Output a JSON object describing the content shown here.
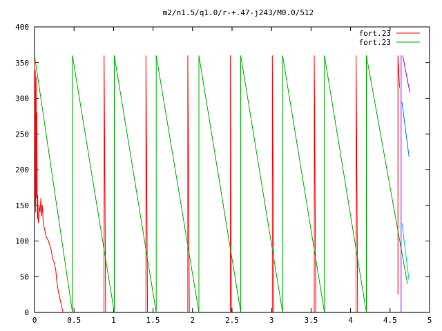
{
  "chart_data": {
    "type": "line",
    "title": "m2/n1.5/q1.0/r-+.47-j243/M0.0/512",
    "xlabel": "",
    "ylabel": "",
    "xlim": [
      0,
      5
    ],
    "ylim": [
      0,
      400
    ],
    "x_ticks": [
      0,
      0.5,
      1,
      1.5,
      2,
      2.5,
      3,
      3.5,
      4,
      4.5,
      5
    ],
    "x_tick_labels": [
      "0",
      "0.5",
      "1",
      "1.5",
      "2",
      "2.5",
      "3",
      "3.5",
      "4",
      "4.5",
      "5"
    ],
    "y_ticks": [
      0,
      50,
      100,
      150,
      200,
      250,
      300,
      350,
      400
    ],
    "y_tick_labels": [
      "0",
      "50",
      "100",
      "150",
      "200",
      "250",
      "300",
      "350",
      "400"
    ],
    "grid": false,
    "legend_position": "top-right",
    "series": [
      {
        "name": "fort.23",
        "color": "#ff0000",
        "x": [
          0.0,
          0.005,
          0.01,
          0.015,
          0.02,
          0.025,
          0.03,
          0.035,
          0.04,
          0.045,
          0.05,
          0.06,
          0.07,
          0.08,
          0.09,
          0.1,
          0.11,
          0.12,
          0.13,
          0.14,
          0.15,
          0.17,
          0.19,
          0.21,
          0.23,
          0.25,
          0.27,
          0.28,
          0.29,
          0.3,
          0.36,
          0.36,
          0.88,
          0.88,
          0.9,
          0.9,
          1.41,
          1.41,
          1.43,
          1.43,
          1.94,
          1.94,
          1.96,
          1.96,
          2.48,
          2.48,
          2.49,
          2.49,
          3.01,
          3.01,
          3.03,
          3.03,
          3.54,
          3.54,
          3.56,
          3.56,
          4.07,
          4.07,
          4.09,
          4.09,
          4.6,
          4.6,
          4.62,
          4.62,
          4.65
        ],
        "y": [
          355,
          150,
          340,
          140,
          330,
          160,
          280,
          130,
          165,
          135,
          125,
          150,
          140,
          160,
          135,
          150,
          125,
          120,
          115,
          110,
          105,
          102,
          95,
          88,
          75,
          70,
          58,
          45,
          38,
          30,
          0,
          null,
          0,
          360,
          0,
          null,
          0,
          360,
          0,
          null,
          0,
          360,
          0,
          null,
          0,
          360,
          0,
          null,
          0,
          360,
          0,
          null,
          0,
          360,
          0,
          null,
          0,
          360,
          0,
          null,
          25,
          360,
          315,
          null,
          null
        ]
      },
      {
        "name": "fort.23",
        "color": "#00b000",
        "x": [
          0.0,
          0.48,
          0.48,
          1.01,
          1.01,
          1.54,
          1.54,
          2.08,
          2.08,
          2.61,
          2.61,
          3.14,
          3.14,
          3.67,
          3.67,
          4.2,
          4.2,
          4.72
        ],
        "y": [
          360,
          0,
          360,
          0,
          360,
          0,
          360,
          0,
          360,
          0,
          360,
          0,
          360,
          0,
          360,
          0,
          360,
          40
        ]
      }
    ],
    "extra_segments": [
      {
        "color": "#a000ff",
        "x": [
          4.66,
          4.75
        ],
        "y": [
          360,
          308
        ]
      },
      {
        "color": "#a000ff",
        "x": [
          4.64,
          4.64
        ],
        "y": [
          0,
          360
        ]
      },
      {
        "color": "#0070ff",
        "x": [
          4.65,
          4.74
        ],
        "y": [
          295,
          218
        ]
      },
      {
        "color": "#00c0ff",
        "x": [
          4.65,
          4.74
        ],
        "y": [
          125,
          45
        ]
      }
    ]
  }
}
